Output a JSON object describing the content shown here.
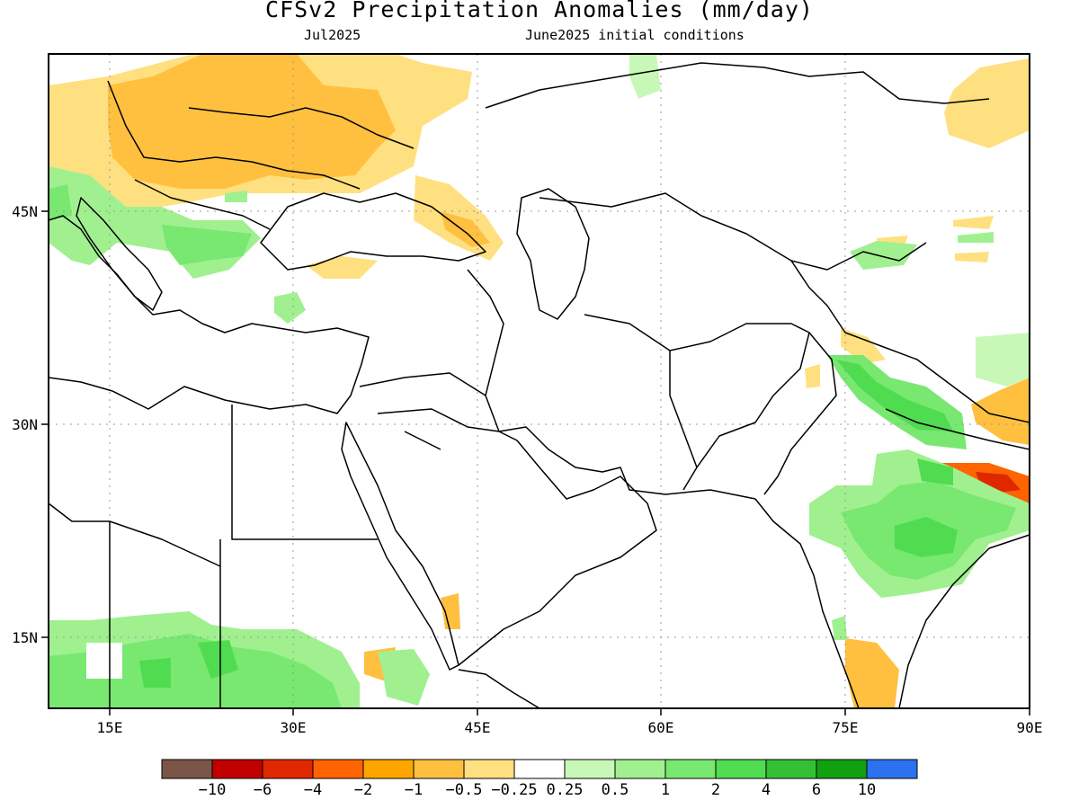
{
  "title": "CFSv2 Precipitation Anomalies (mm/day)",
  "subtitle_left": "Jul2025",
  "subtitle_right": "June2025 initial conditions",
  "map": {
    "lon_ticks": [
      "15E",
      "30E",
      "45E",
      "60E",
      "75E",
      "90E"
    ],
    "lat_ticks": [
      "45N",
      "30N",
      "15N"
    ],
    "lon_range": [
      10,
      90
    ],
    "lat_range": [
      10,
      56
    ]
  },
  "colorbar": {
    "colors": [
      "#7a5548",
      "#c00000",
      "#e02800",
      "#ff6400",
      "#ffa500",
      "#ffc040",
      "#ffe080",
      "#ffffff",
      "#c8f8b8",
      "#a0f090",
      "#78e870",
      "#50dc50",
      "#34c034",
      "#10a010",
      "#2c72f0"
    ],
    "labels": [
      "-10",
      "-6",
      "-4",
      "-2",
      "-1",
      "-0.5",
      "-0.25",
      "0.25",
      "0.5",
      "1",
      "2",
      "4",
      "6",
      "10"
    ]
  }
}
